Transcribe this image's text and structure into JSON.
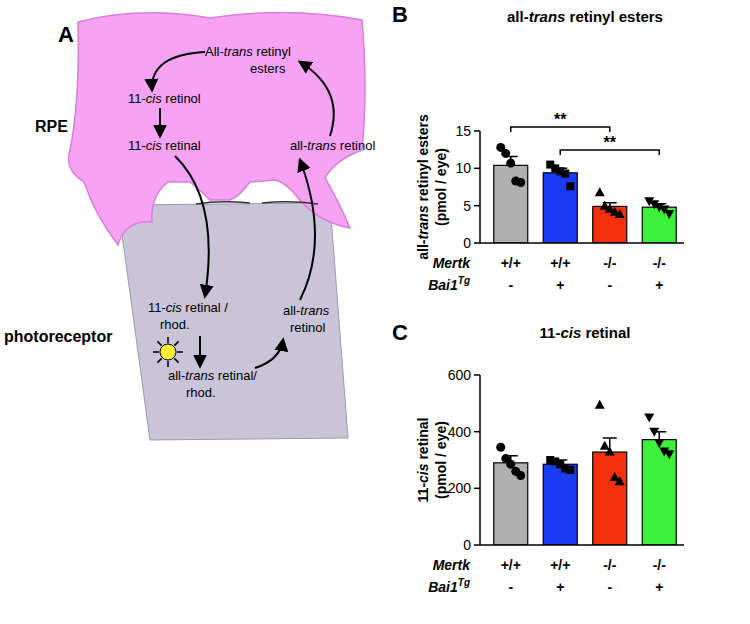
{
  "diagram": {
    "panel": "A",
    "regions": [
      "RPE",
      "photoreceptor"
    ],
    "labels": [
      [
        "All-trans retinyl",
        "esters"
      ],
      [
        "11-cis retinol"
      ],
      [
        "11-cis retinal"
      ],
      [
        "all-trans retinol"
      ],
      [
        "11-cis retinal /",
        "rhod."
      ],
      [
        "all-trans retinal/",
        "rhod."
      ],
      [
        "all-trans",
        "retinol"
      ]
    ]
  },
  "chart_data": [
    {
      "type": "bar",
      "panel": "B",
      "title": "all-trans retinyl esters",
      "ylabel": [
        "all-trans retinyl esters",
        "(pmol / eye)"
      ],
      "categories": [
        null,
        null,
        null,
        null
      ],
      "genotypes": [
        {
          "label": "Mertk",
          "values": [
            "+/+",
            "+/+",
            "-/-",
            "-/-"
          ]
        },
        {
          "label": "Bai1",
          "superscript": "Tg",
          "values": [
            "-",
            "+",
            "-",
            "+"
          ]
        }
      ],
      "values": [
        10.4,
        9.4,
        4.9,
        4.8
      ],
      "errors": [
        1.2,
        0.6,
        0.5,
        0.45
      ],
      "points": [
        [
          12.8,
          12.0,
          10.7,
          8.3,
          8.1
        ],
        [
          10.5,
          10.0,
          9.6,
          9.3,
          7.6
        ],
        [
          6.8,
          5.0,
          4.6,
          4.2,
          3.9
        ],
        [
          5.6,
          5.2,
          4.8,
          4.5,
          3.9
        ]
      ],
      "colors": [
        "#b0b0b0",
        "#1a3cf5",
        "#f5300f",
        "#3cf03c"
      ],
      "ylim": [
        0,
        15
      ],
      "yticks": [
        0,
        5,
        10,
        15
      ],
      "grid": false,
      "annotations": [
        {
          "text": "**",
          "from": 0,
          "to": 2
        },
        {
          "text": "**",
          "from": 1,
          "to": 3
        }
      ]
    },
    {
      "type": "bar",
      "panel": "C",
      "title": "11-cis retinal",
      "ylabel": [
        "11-cis retinal",
        "(pmol / eye)"
      ],
      "categories": [
        null,
        null,
        null,
        null
      ],
      "genotypes": [
        {
          "label": "Mertk",
          "values": [
            "+/+",
            "+/+",
            "-/-",
            "-/-"
          ]
        },
        {
          "label": "Bai1",
          "superscript": "Tg",
          "values": [
            "-",
            "+",
            "-",
            "+"
          ]
        }
      ],
      "values": [
        290,
        285,
        328,
        372
      ],
      "errors": [
        25,
        15,
        50,
        28
      ],
      "points": [
        [
          345,
          305,
          285,
          260,
          245
        ],
        [
          300,
          295,
          285,
          270,
          265
        ],
        [
          495,
          350,
          330,
          240,
          225
        ],
        [
          450,
          400,
          360,
          330,
          320
        ]
      ],
      "colors": [
        "#b0b0b0",
        "#1a3cf5",
        "#f5300f",
        "#3cf03c"
      ],
      "ylim": [
        0,
        600
      ],
      "yticks": [
        0,
        200,
        400,
        600
      ],
      "grid": false
    }
  ]
}
